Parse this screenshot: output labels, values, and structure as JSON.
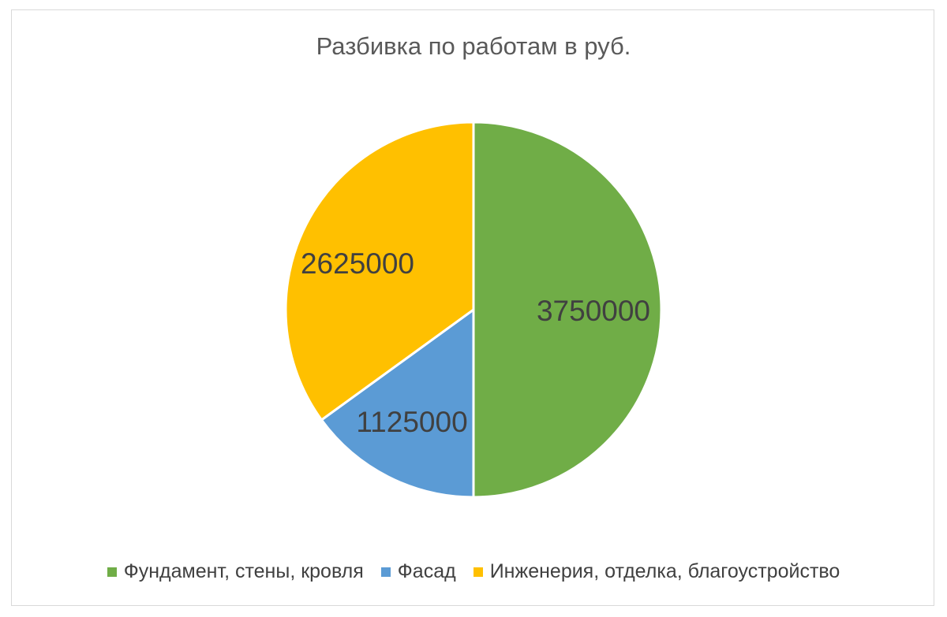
{
  "chart_data": {
    "type": "pie",
    "title": "Разбивка по работам в руб.",
    "categories": [
      "Фундамент, стены, кровля",
      "Фасад",
      "Инженерия, отделка, благоустройство"
    ],
    "values": [
      3750000,
      1125000,
      2625000
    ],
    "data_labels": [
      "3750000",
      "1125000",
      "2625000"
    ],
    "colors": [
      "#70AD47",
      "#5B9BD5",
      "#FFC000"
    ],
    "start_angle_deg": 0,
    "direction": "clockwise",
    "legend_position": "bottom"
  }
}
